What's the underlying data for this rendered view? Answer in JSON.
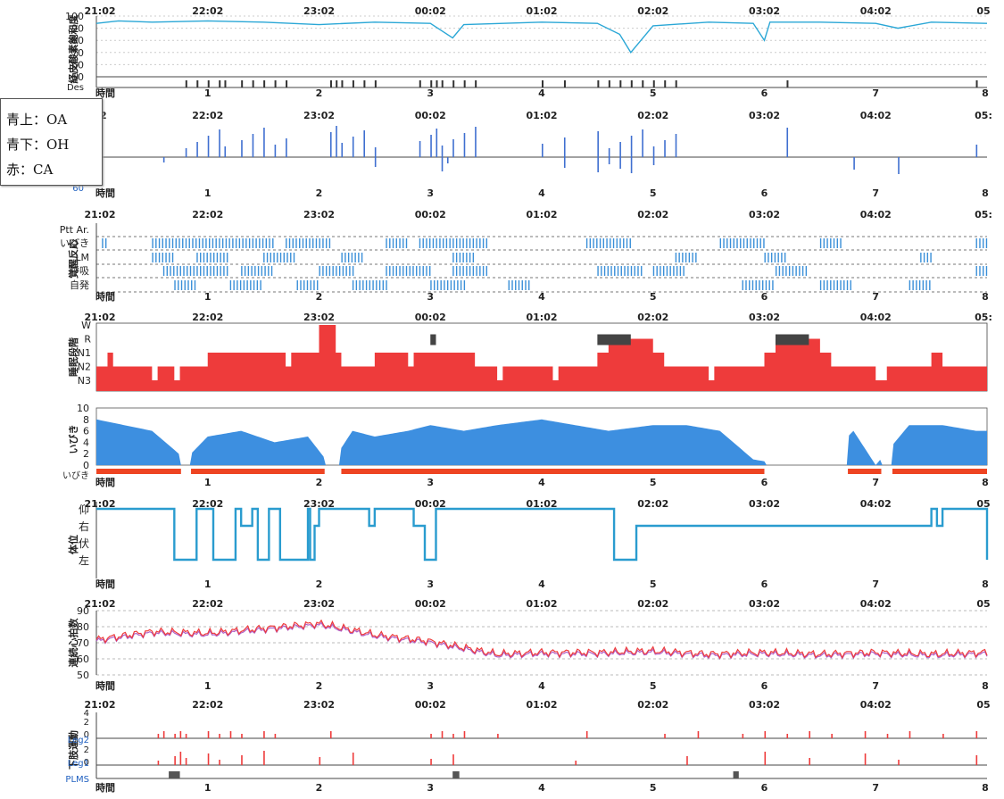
{
  "legend": {
    "oa": "青上：OA",
    "oh": "青下：OH",
    "ca": "赤：CA"
  },
  "colors": {
    "spo2": "#2aa7d6",
    "event": "#3f6fd0",
    "arousal": "#3a8fd8",
    "stage": "#ee3b3b",
    "snore": "#3d8fe0",
    "snore_bar": "#ee4422",
    "position": "#2a9ccf",
    "hr_a": "#ee3b3b",
    "hr_b": "#b060c8",
    "leg": "#ee3b3b",
    "leg_label": "#2060c0",
    "plms": "#555555"
  },
  "chart_data": [
    {
      "type": "line",
      "panel": "spo2",
      "ylabel": "経皮酸素飽和度",
      "time_ticks": [
        "21:02",
        "22:02",
        "23:02",
        "00:02",
        "01:02",
        "02:02",
        "03:02",
        "04:02",
        "05"
      ],
      "hour_ticks": [
        "1",
        "2",
        "3",
        "4",
        "5",
        "6",
        "7",
        "8"
      ],
      "hour_label": "時間",
      "yticks": [
        "100",
        "90",
        "80",
        "70",
        "60",
        "50"
      ],
      "ylim": [
        50,
        100
      ],
      "extra_row_label": "Des",
      "x": [
        0,
        0.2,
        0.5,
        1,
        1.5,
        2,
        2.5,
        3,
        3.1,
        3.2,
        3.3,
        4,
        4.5,
        4.7,
        4.8,
        5,
        5.5,
        5.9,
        6,
        6.05,
        6.5,
        7,
        7.2,
        7.5,
        8
      ],
      "y": [
        94,
        96,
        95,
        96,
        95,
        93,
        95,
        94,
        88,
        82,
        93,
        95,
        94,
        85,
        70,
        92,
        95,
        94,
        80,
        95,
        95,
        94,
        90,
        95,
        94
      ]
    },
    {
      "type": "bar",
      "panel": "respiratory-events",
      "time_ticks": [
        "02",
        "22:02",
        "23:02",
        "00:02",
        "01:02",
        "02:02",
        "03:02",
        "04:02",
        "05:"
      ],
      "hour_ticks": [
        "1",
        "2",
        "3",
        "4",
        "5",
        "6",
        "7",
        "8"
      ],
      "hour_label": "時間",
      "bottom_label": "60",
      "oa_hours": [
        0.8,
        0.9,
        1.0,
        1.1,
        1.15,
        1.3,
        1.4,
        1.5,
        1.6,
        1.7,
        2.1,
        2.15,
        2.2,
        2.3,
        2.4,
        2.5,
        2.9,
        3.0,
        3.05,
        3.1,
        3.2,
        3.3,
        3.4,
        4.0,
        4.2,
        4.5,
        4.6,
        4.7,
        4.8,
        4.9,
        5.0,
        5.1,
        5.2,
        6.2,
        7.9
      ],
      "oh_hours": [
        0.6,
        2.5,
        3.1,
        3.15,
        4.2,
        4.5,
        4.6,
        4.7,
        4.8,
        5.0,
        6.8,
        7.2
      ],
      "ca_hours": []
    },
    {
      "type": "bar",
      "panel": "arousal",
      "ylabel": "覚醒反応",
      "time_ticks": [
        "21:02",
        "22:02",
        "23:02",
        "00:02",
        "01:02",
        "02:02",
        "03:02",
        "04:02",
        "05:"
      ],
      "hour_ticks": [
        "1",
        "2",
        "3",
        "4",
        "5",
        "6",
        "7",
        "8"
      ],
      "hour_label": "時間",
      "rows": [
        "Ptt Ar.",
        "いびき",
        "LM",
        "呼吸",
        "自発"
      ],
      "segments": [
        {
          "row": "いびき",
          "hours": [
            [
              0.05,
              0.1
            ],
            [
              0.5,
              1.6
            ],
            [
              1.7,
              2.1
            ],
            [
              2.6,
              2.8
            ],
            [
              2.9,
              3.5
            ],
            [
              4.4,
              4.8
            ],
            [
              5.6,
              6.0
            ],
            [
              6.5,
              6.7
            ],
            [
              7.9,
              8.0
            ]
          ]
        },
        {
          "row": "LM",
          "hours": [
            [
              0.5,
              0.7
            ],
            [
              0.9,
              1.2
            ],
            [
              1.5,
              1.8
            ],
            [
              2.2,
              2.4
            ],
            [
              3.2,
              3.4
            ],
            [
              5.2,
              5.4
            ],
            [
              6.0,
              6.2
            ],
            [
              7.4,
              7.5
            ]
          ]
        },
        {
          "row": "呼吸",
          "hours": [
            [
              0.6,
              1.2
            ],
            [
              1.3,
              1.6
            ],
            [
              2.0,
              2.3
            ],
            [
              2.6,
              3.0
            ],
            [
              3.2,
              3.5
            ],
            [
              4.5,
              4.9
            ],
            [
              5.0,
              5.3
            ],
            [
              6.1,
              6.4
            ],
            [
              7.9,
              8.0
            ]
          ]
        },
        {
          "row": "自発",
          "hours": [
            [
              0.7,
              0.9
            ],
            [
              1.2,
              1.5
            ],
            [
              1.8,
              2.0
            ],
            [
              2.3,
              2.6
            ],
            [
              3.0,
              3.3
            ],
            [
              3.7,
              3.9
            ],
            [
              5.8,
              6.1
            ],
            [
              6.5,
              6.8
            ],
            [
              7.3,
              7.5
            ]
          ]
        }
      ]
    },
    {
      "type": "area",
      "panel": "sleep-stage",
      "ylabel": "睡眠段階",
      "time_ticks": [
        "21:02",
        "22:02",
        "23:02",
        "00:02",
        "01:02",
        "02:02",
        "03:02",
        "04:02",
        "05:"
      ],
      "stages": [
        "W",
        "R",
        "N1",
        "N2",
        "N3"
      ],
      "x": [
        0,
        0.1,
        0.15,
        0.5,
        0.55,
        0.7,
        0.75,
        1.0,
        1.5,
        1.7,
        1.75,
        2.0,
        2.15,
        2.2,
        2.5,
        2.8,
        2.85,
        3.3,
        3.4,
        3.6,
        3.65,
        4.1,
        4.15,
        4.5,
        4.6,
        5.0,
        5.1,
        5.5,
        5.55,
        6.0,
        6.1,
        6.5,
        6.6,
        7.0,
        7.1,
        7.5,
        7.6,
        8
      ],
      "y": [
        "N2",
        "N1",
        "N2",
        "N3",
        "N2",
        "N3",
        "N2",
        "N1",
        "N1",
        "N2",
        "N1",
        "W",
        "N1",
        "N2",
        "N1",
        "N2",
        "N1",
        "N1",
        "N2",
        "N3",
        "N2",
        "N3",
        "N2",
        "N1",
        "R",
        "N1",
        "N2",
        "N3",
        "N2",
        "N1",
        "R",
        "N1",
        "N2",
        "N3",
        "N2",
        "N1",
        "N2",
        "N2"
      ],
      "rem_blocks": [
        [
          3.0,
          3.05
        ],
        [
          4.5,
          4.8
        ],
        [
          6.1,
          6.4
        ]
      ]
    },
    {
      "type": "bar",
      "panel": "snoring",
      "ylabel": "いびき",
      "hour_ticks": [
        "1",
        "2",
        "3",
        "4",
        "5",
        "6",
        "7",
        "8"
      ],
      "hour_label": "時間",
      "yticks": [
        "10",
        "8",
        "6",
        "4",
        "2",
        "0"
      ],
      "ylim": [
        0,
        10
      ],
      "extra_row_label": "いびき",
      "x": [
        0,
        0.5,
        0.8,
        1.0,
        1.3,
        1.6,
        1.9,
        2.1,
        2.3,
        2.5,
        2.8,
        3.0,
        3.3,
        3.6,
        4.0,
        4.3,
        4.6,
        5.0,
        5.3,
        5.6,
        5.9,
        6.2,
        6.5,
        6.8,
        7.0,
        7.3,
        7.6,
        7.9
      ],
      "y": [
        8,
        6,
        1,
        5,
        6,
        4,
        5,
        0,
        6,
        5,
        6,
        7,
        6,
        7,
        8,
        7,
        6,
        7,
        7,
        6,
        1,
        0,
        0,
        6,
        0,
        7,
        7,
        6
      ],
      "gaps": [
        [
          0.76,
          0.85
        ],
        [
          2.05,
          2.2
        ],
        [
          6.0,
          6.75
        ],
        [
          7.05,
          7.15
        ]
      ]
    },
    {
      "type": "line",
      "panel": "body-position",
      "ylabel": "体位",
      "time_ticks": [
        "21:02",
        "22:02",
        "23:02",
        "00:02",
        "01:02",
        "02:02",
        "03:02",
        "04:02",
        "05"
      ],
      "hour_ticks": [
        "1",
        "2",
        "3",
        "4",
        "5",
        "6",
        "7",
        "8"
      ],
      "hour_label": "時間",
      "positions": [
        "仰",
        "右",
        "伏",
        "左"
      ],
      "x": [
        0,
        0.7,
        0.9,
        1.05,
        1.25,
        1.3,
        1.4,
        1.45,
        1.55,
        1.65,
        1.9,
        1.92,
        1.96,
        2.0,
        2.45,
        2.5,
        2.85,
        2.95,
        3.05,
        3.1,
        4.65,
        4.8,
        4.85,
        5.95,
        6.05,
        7.5,
        7.55,
        7.6,
        7.65,
        8
      ],
      "y": [
        "仰",
        "左",
        "仰",
        "左",
        "仰",
        "右",
        "仰",
        "左",
        "仰",
        "左",
        "仰",
        "左",
        "右",
        "仰",
        "右",
        "仰",
        "右",
        "左",
        "仰",
        "仰",
        "左",
        "左",
        "右",
        "右",
        "右",
        "仰",
        "右",
        "仰",
        "仰",
        "左"
      ]
    },
    {
      "type": "line",
      "panel": "heart-rate",
      "ylabel": "連続心拍数",
      "time_ticks": [
        "21:02",
        "22:02",
        "23:02",
        "00:02",
        "01:02",
        "02:02",
        "03:02",
        "04:02",
        "05"
      ],
      "hour_ticks": [
        "1",
        "2",
        "3",
        "4",
        "5",
        "6",
        "7",
        "8"
      ],
      "hour_label": "時間",
      "yticks": [
        "90",
        "80",
        "70",
        "60",
        "50"
      ],
      "ylim": [
        50,
        90
      ],
      "x": [
        0,
        0.5,
        1.0,
        1.5,
        2.0,
        2.3,
        2.5,
        3.0,
        3.3,
        3.6,
        4.0,
        4.5,
        5.0,
        5.5,
        6.0,
        6.5,
        7.0,
        7.5,
        8
      ],
      "y": [
        72,
        77,
        76,
        79,
        82,
        78,
        75,
        71,
        67,
        63,
        64,
        64,
        65,
        63,
        64,
        63,
        64,
        63,
        64
      ],
      "y2": [
        71,
        76,
        75,
        78,
        81,
        77,
        74,
        70,
        66,
        62,
        63,
        63,
        64,
        62,
        63,
        62,
        63,
        62,
        63
      ]
    },
    {
      "type": "bar",
      "panel": "leg-movement",
      "ylabel": "下肢運動",
      "time_ticks": [
        "21:02",
        "22:02",
        "23:02",
        "00:02",
        "01:02",
        "02:02",
        "03:02",
        "04:02",
        "05"
      ],
      "hour_ticks": [
        "1",
        "2",
        "3",
        "4",
        "5",
        "6",
        "7",
        "8"
      ],
      "hour_label": "時間",
      "yticks": [
        "4",
        "2",
        "0"
      ],
      "rows": [
        "Leg2",
        "Leg1",
        "PLMS"
      ],
      "leg2_hours": [
        0.55,
        0.6,
        0.7,
        0.75,
        0.8,
        1.0,
        1.1,
        1.2,
        1.3,
        1.5,
        1.6,
        2.1,
        3.0,
        3.1,
        3.2,
        3.3,
        3.6,
        4.4,
        5.1,
        5.4,
        5.8,
        6.0,
        6.2,
        6.4,
        6.6,
        6.9,
        7.1,
        7.3,
        7.6,
        7.9
      ],
      "leg1_hours": [
        0.55,
        0.7,
        0.75,
        0.8,
        1.0,
        1.1,
        1.3,
        1.5,
        2.0,
        2.3,
        3.0,
        3.2,
        4.3,
        5.3,
        6.0,
        6.4,
        6.9,
        7.2,
        7.9
      ],
      "plms_hours": [
        [
          0.65,
          0.75
        ],
        [
          3.2,
          3.26
        ],
        [
          5.72,
          5.77
        ]
      ]
    }
  ]
}
